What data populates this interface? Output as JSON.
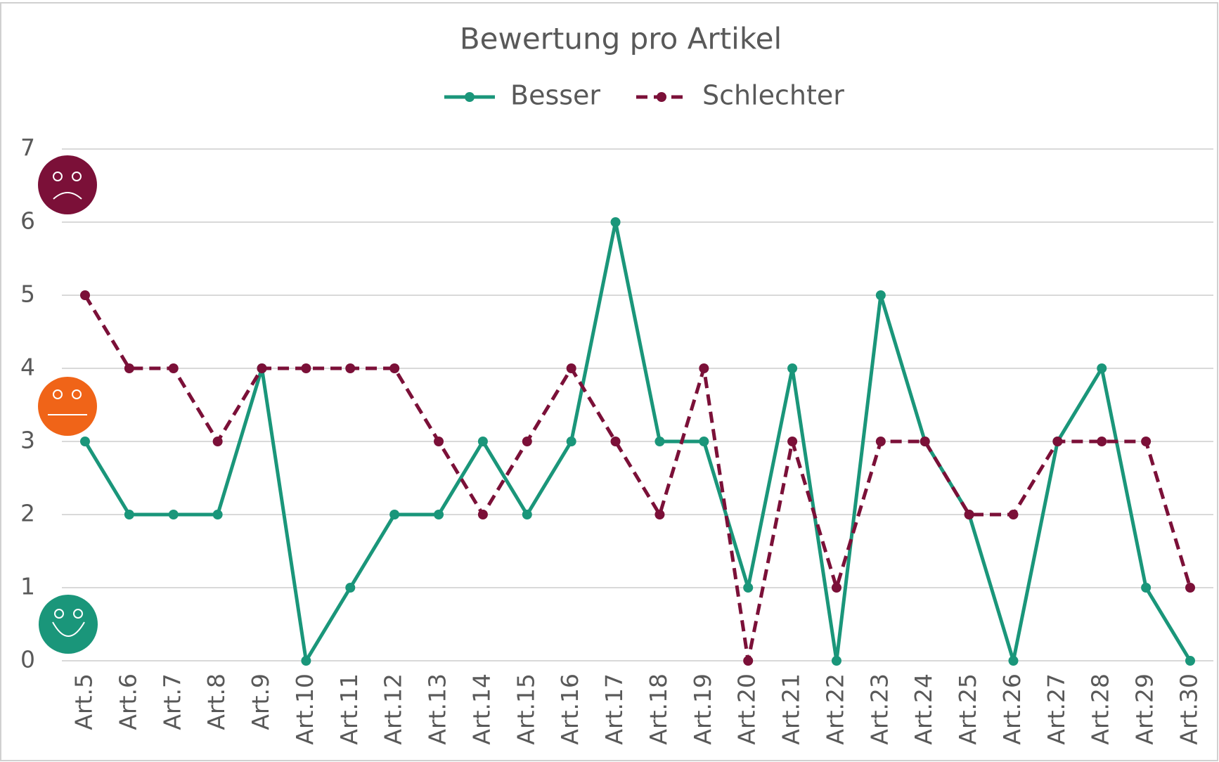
{
  "chart_data": {
    "type": "line",
    "title": "Bewertung pro Artikel",
    "categories": [
      "Art.5",
      "Art.6",
      "Art.7",
      "Art.8",
      "Art.9",
      "Art.10",
      "Art.11",
      "Art.12",
      "Art.13",
      "Art.14",
      "Art.15",
      "Art.16",
      "Art.17",
      "Art.18",
      "Art.19",
      "Art.20",
      "Art.21",
      "Art.22",
      "Art.23",
      "Art.24",
      "Art.25",
      "Art.26",
      "Art.27",
      "Art.28",
      "Art.29",
      "Art.30"
    ],
    "series": [
      {
        "name": "Besser",
        "color": "#1a967a",
        "dashed": false,
        "values": [
          3,
          2,
          2,
          2,
          4,
          0,
          1,
          2,
          2,
          3,
          2,
          3,
          6,
          3,
          3,
          1,
          4,
          0,
          5,
          3,
          2,
          0,
          3,
          4,
          1,
          0
        ]
      },
      {
        "name": "Schlechter",
        "color": "#7b1038",
        "dashed": true,
        "values": [
          5,
          4,
          4,
          3,
          4,
          4,
          4,
          4,
          3,
          2,
          3,
          4,
          3,
          2,
          4,
          0,
          3,
          1,
          3,
          3,
          2,
          2,
          3,
          3,
          3,
          1
        ]
      }
    ],
    "ylim": [
      0,
      7
    ],
    "yticks": [
      0,
      1,
      2,
      3,
      4,
      5,
      6,
      7
    ],
    "grid": true,
    "legend": "top"
  }
}
